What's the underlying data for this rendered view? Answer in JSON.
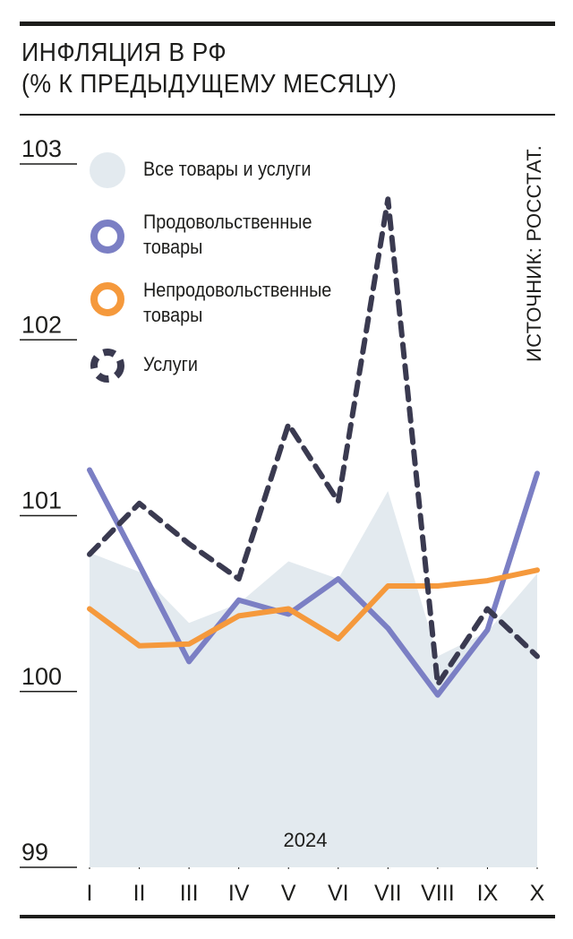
{
  "header": {
    "title_line1": "ИНФЛЯЦИЯ В РФ",
    "title_line2": "(% К ПРЕДЫДУЩЕМУ МЕСЯЦУ)"
  },
  "source": "ИСТОЧНИК: РОССТАТ.",
  "legend": {
    "items": [
      {
        "key": "all",
        "line1": "Все товары и услуги",
        "line2": ""
      },
      {
        "key": "food",
        "line1": "Продовольственные",
        "line2": "товары"
      },
      {
        "key": "nonfood",
        "line1": "Непродовольственные",
        "line2": "товары"
      },
      {
        "key": "services",
        "line1": "Услуги",
        "line2": ""
      }
    ]
  },
  "colors": {
    "all": "#e3eaef",
    "food": "#7b7fc4",
    "nonfood": "#f5993c",
    "services": "#3a3a50",
    "ink": "#1d1d1b"
  },
  "chart_data": {
    "type": "line",
    "title": "ИНФЛЯЦИЯ В РФ (% К ПРЕДЫДУЩЕМУ МЕСЯЦУ)",
    "year_label": "2024",
    "categories": [
      "I",
      "II",
      "III",
      "IV",
      "V",
      "VI",
      "VII",
      "VIII",
      "IX",
      "X"
    ],
    "ylim": [
      99,
      103
    ],
    "yticks": [
      "99",
      "100",
      "101",
      "102",
      "103"
    ],
    "series": [
      {
        "name": "Все товары и услуги",
        "key": "all",
        "style": "area",
        "values": [
          100.79,
          100.68,
          100.39,
          100.5,
          100.74,
          100.64,
          101.14,
          100.2,
          100.34,
          100.67
        ]
      },
      {
        "name": "Продовольственные товары",
        "key": "food",
        "style": "solid",
        "values": [
          101.26,
          100.72,
          100.17,
          100.52,
          100.44,
          100.64,
          100.36,
          99.98,
          100.35,
          101.24
        ]
      },
      {
        "name": "Непродовольственные товары",
        "key": "nonfood",
        "style": "solid",
        "values": [
          100.47,
          100.26,
          100.27,
          100.43,
          100.47,
          100.3,
          100.6,
          100.6,
          100.63,
          100.69
        ]
      },
      {
        "name": "Услуги",
        "key": "services",
        "style": "dashed",
        "values": [
          100.78,
          101.07,
          100.84,
          100.64,
          101.52,
          101.08,
          102.8,
          100.04,
          100.47,
          100.2
        ]
      }
    ]
  }
}
